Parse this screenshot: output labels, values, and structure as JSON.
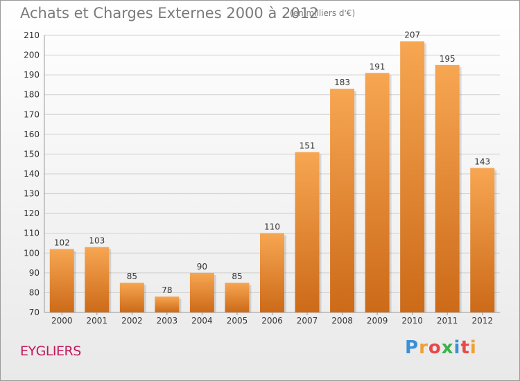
{
  "header": {
    "title": "Achats et Charges Externes 2000 à 2012",
    "unit": "(en milliers d'€)"
  },
  "commune": "EYGLIERS",
  "logo": {
    "text": "Proxiti",
    "letters": [
      {
        "ch": "P",
        "color": "#3b8fd6"
      },
      {
        "ch": "r",
        "color": "#f0a030"
      },
      {
        "ch": "o",
        "color": "#e8484a"
      },
      {
        "ch": "x",
        "color": "#3ab34a"
      },
      {
        "ch": "i",
        "color": "#3b8fd6"
      },
      {
        "ch": "t",
        "color": "#e8484a"
      },
      {
        "ch": "i",
        "color": "#f0a030"
      }
    ]
  },
  "colors": {
    "bar_top": "#f7a652",
    "bar_bottom": "#cc6a18",
    "grid": "#cfcfcf",
    "text": "#333333",
    "title": "#7a7a7a",
    "commune": "#c2185b"
  },
  "chart_data": {
    "type": "bar",
    "title": "Achats et Charges Externes 2000 à 2012",
    "subtitle": "(en milliers d'€)",
    "categories": [
      "2000",
      "2001",
      "2002",
      "2003",
      "2004",
      "2005",
      "2006",
      "2007",
      "2008",
      "2009",
      "2010",
      "2011",
      "2012"
    ],
    "values": [
      102,
      103,
      85,
      78,
      90,
      85,
      110,
      151,
      183,
      191,
      207,
      195,
      143
    ],
    "xlabel": "",
    "ylabel": "",
    "ylim": [
      70,
      210
    ],
    "yticks": [
      70,
      80,
      90,
      100,
      110,
      120,
      130,
      140,
      150,
      160,
      170,
      180,
      190,
      200,
      210
    ],
    "grid": true,
    "data_labels": true
  }
}
